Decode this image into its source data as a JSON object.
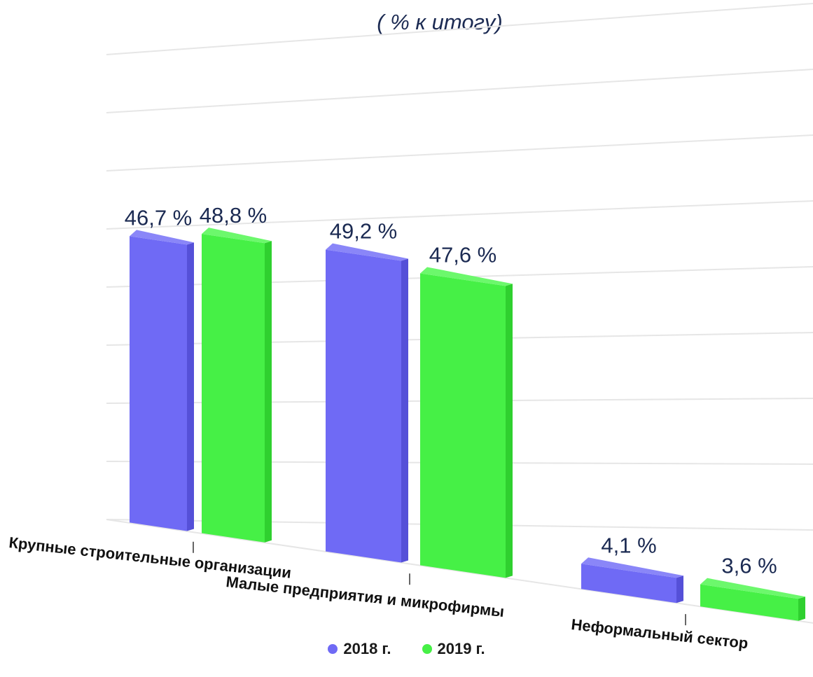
{
  "chart_data": {
    "type": "bar",
    "title": "",
    "subtitle": "( % к итогу)",
    "categories": [
      "Крупные строительные организации",
      "Малые предприятия и микрофирмы",
      "Неформальный сектор"
    ],
    "series": [
      {
        "name": "2018 г.",
        "values": [
          46.7,
          49.2,
          4.1
        ],
        "labels": [
          "46,7 %",
          "49,2 %",
          "4,1 %"
        ],
        "color": "#6f6af5",
        "side_color": "#5550d8",
        "top_color": "#8a86f8"
      },
      {
        "name": "2019 г.",
        "values": [
          48.8,
          47.6,
          3.6
        ],
        "labels": [
          "48,8 %",
          "47,6 %",
          "3,6 %"
        ],
        "color": "#46f046",
        "side_color": "#2fd02f",
        "top_color": "#6cf86c"
      }
    ],
    "ylim": [
      0,
      50
    ],
    "grid": true,
    "legend": "bottom-center",
    "style": "3d"
  }
}
